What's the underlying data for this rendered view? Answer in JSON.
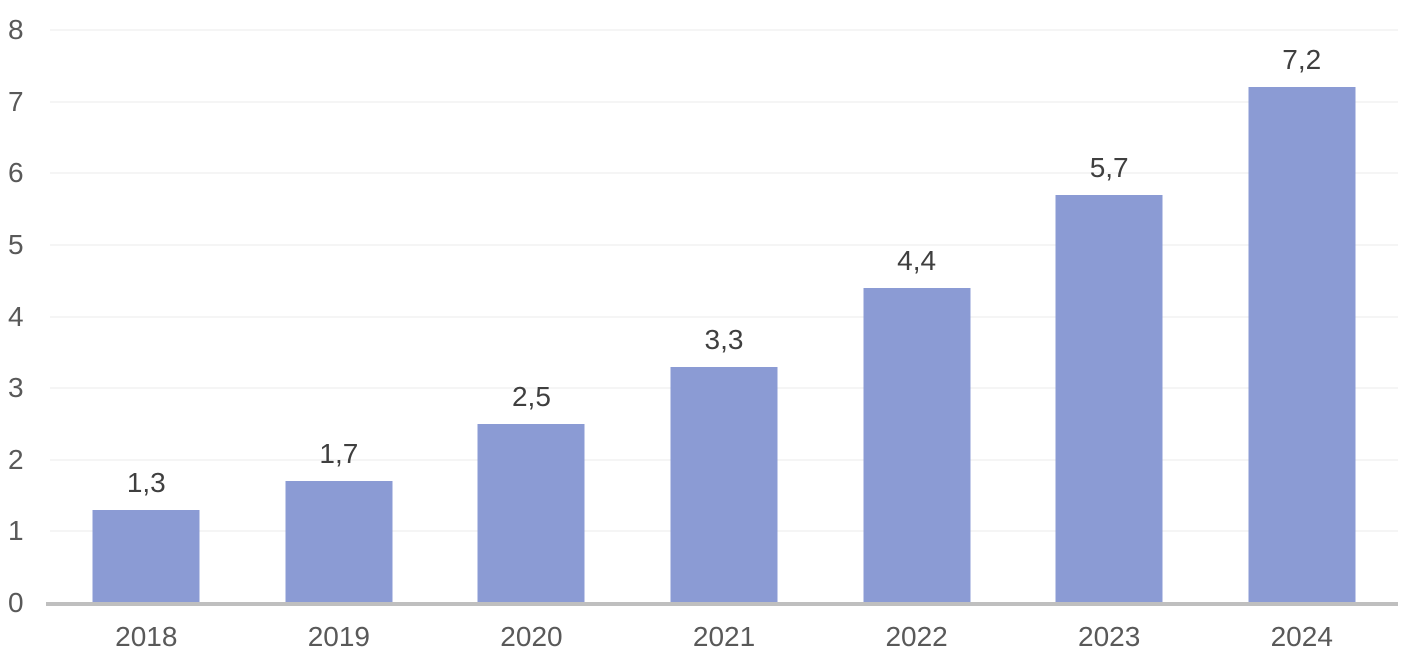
{
  "chart_data": {
    "type": "bar",
    "title": "",
    "xlabel": "",
    "ylabel": "",
    "categories": [
      "2018",
      "2019",
      "2020",
      "2021",
      "2022",
      "2023",
      "2024"
    ],
    "values": [
      1.3,
      1.7,
      2.5,
      3.3,
      4.4,
      5.7,
      7.2
    ],
    "value_labels": [
      "1,3",
      "1,7",
      "2,5",
      "3,3",
      "4,4",
      "5,7",
      "7,2"
    ],
    "y_ticks": [
      "8",
      "7",
      "6",
      "5",
      "4",
      "3",
      "2",
      "1",
      "0"
    ],
    "y_tick_values": [
      8,
      7,
      6,
      5,
      4,
      3,
      2,
      1,
      0
    ],
    "ylim": [
      0,
      8
    ],
    "grid": true,
    "legend": false,
    "decimal_separator": ",",
    "colors": {
      "bar": "#8B9BD4",
      "gridline": "#F5F5F5",
      "axis_line": "#BFBFBF",
      "tick_label": "#595959",
      "data_label": "#3F3F3F",
      "background": "#FFFFFF"
    }
  }
}
